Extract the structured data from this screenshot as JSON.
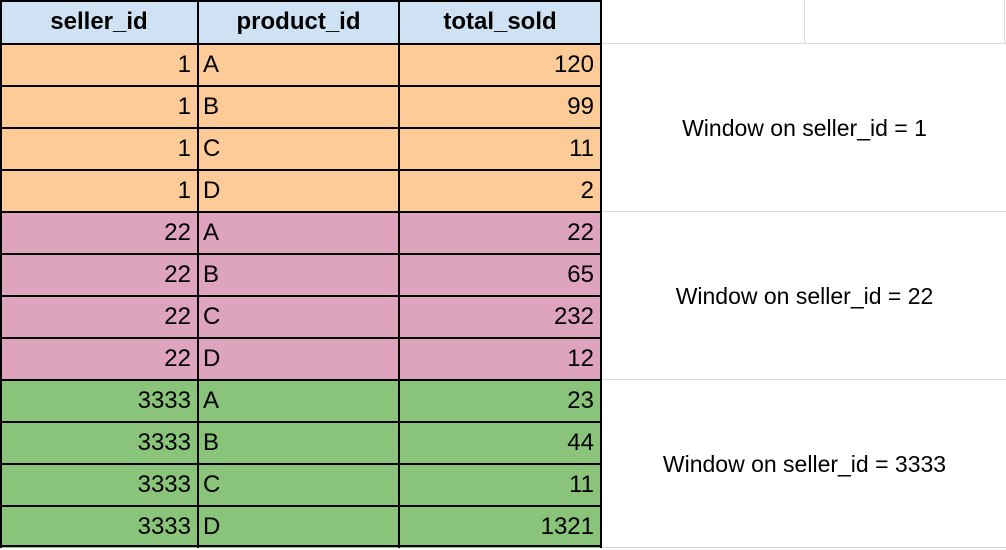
{
  "sheet": {
    "columns": [
      "seller_id",
      "product_id",
      "total_sold"
    ],
    "groups": [
      {
        "color": "#fdcb97",
        "note": "Window on seller_id = 1",
        "rows": [
          {
            "seller_id": "1",
            "product_id": "A",
            "total_sold": "120"
          },
          {
            "seller_id": "1",
            "product_id": "B",
            "total_sold": "99"
          },
          {
            "seller_id": "1",
            "product_id": "C",
            "total_sold": "11"
          },
          {
            "seller_id": "1",
            "product_id": "D",
            "total_sold": "2"
          }
        ]
      },
      {
        "color": "#dea3bd",
        "note": "Window on seller_id = 22",
        "rows": [
          {
            "seller_id": "22",
            "product_id": "A",
            "total_sold": "22"
          },
          {
            "seller_id": "22",
            "product_id": "B",
            "total_sold": "65"
          },
          {
            "seller_id": "22",
            "product_id": "C",
            "total_sold": "232"
          },
          {
            "seller_id": "22",
            "product_id": "D",
            "total_sold": "12"
          }
        ]
      },
      {
        "color": "#89c47a",
        "note": "Window on seller_id = 3333",
        "rows": [
          {
            "seller_id": "3333",
            "product_id": "A",
            "total_sold": "23"
          },
          {
            "seller_id": "3333",
            "product_id": "B",
            "total_sold": "44"
          },
          {
            "seller_id": "3333",
            "product_id": "C",
            "total_sold": "11"
          },
          {
            "seller_id": "3333",
            "product_id": "D",
            "total_sold": "1321"
          }
        ]
      }
    ],
    "header_color": "#cfe2f3",
    "border_color": "#000000",
    "gridline_color": "#d9d9d9"
  }
}
